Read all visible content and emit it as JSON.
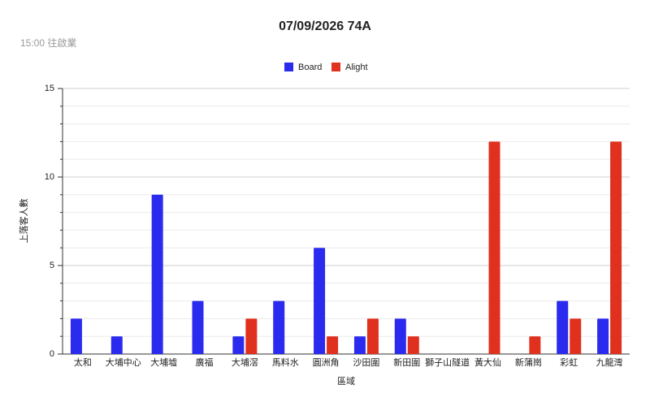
{
  "chart_data": {
    "type": "bar",
    "title": "07/09/2026 74A",
    "subtitle": "15:00 往啟業",
    "x_label": "區域",
    "y_label": "上落客人數",
    "categories": [
      "太和",
      "大埔中心",
      "大埔墟",
      "廣福",
      "大埔滘",
      "馬料水",
      "圓洲角",
      "沙田圍",
      "新田圍",
      "獅子山隧道",
      "黃大仙",
      "新蒲崗",
      "彩虹",
      "九龍灣"
    ],
    "series": [
      {
        "name": "Board",
        "color": "#2b2bef",
        "values": [
          2,
          1,
          9,
          3,
          1,
          3,
          6,
          1,
          2,
          0,
          0,
          0,
          3,
          2
        ]
      },
      {
        "name": "Alight",
        "color": "#e0301e",
        "values": [
          0,
          0,
          0,
          0,
          2,
          0,
          1,
          2,
          1,
          0,
          12,
          1,
          2,
          12
        ]
      }
    ],
    "ylim": [
      0,
      15
    ],
    "yticks": [
      0,
      5,
      10,
      15
    ],
    "minor_yticks": [
      1,
      2,
      3,
      4,
      6,
      7,
      8,
      9,
      11,
      12,
      13,
      14
    ],
    "grid": true,
    "legend": "top"
  }
}
